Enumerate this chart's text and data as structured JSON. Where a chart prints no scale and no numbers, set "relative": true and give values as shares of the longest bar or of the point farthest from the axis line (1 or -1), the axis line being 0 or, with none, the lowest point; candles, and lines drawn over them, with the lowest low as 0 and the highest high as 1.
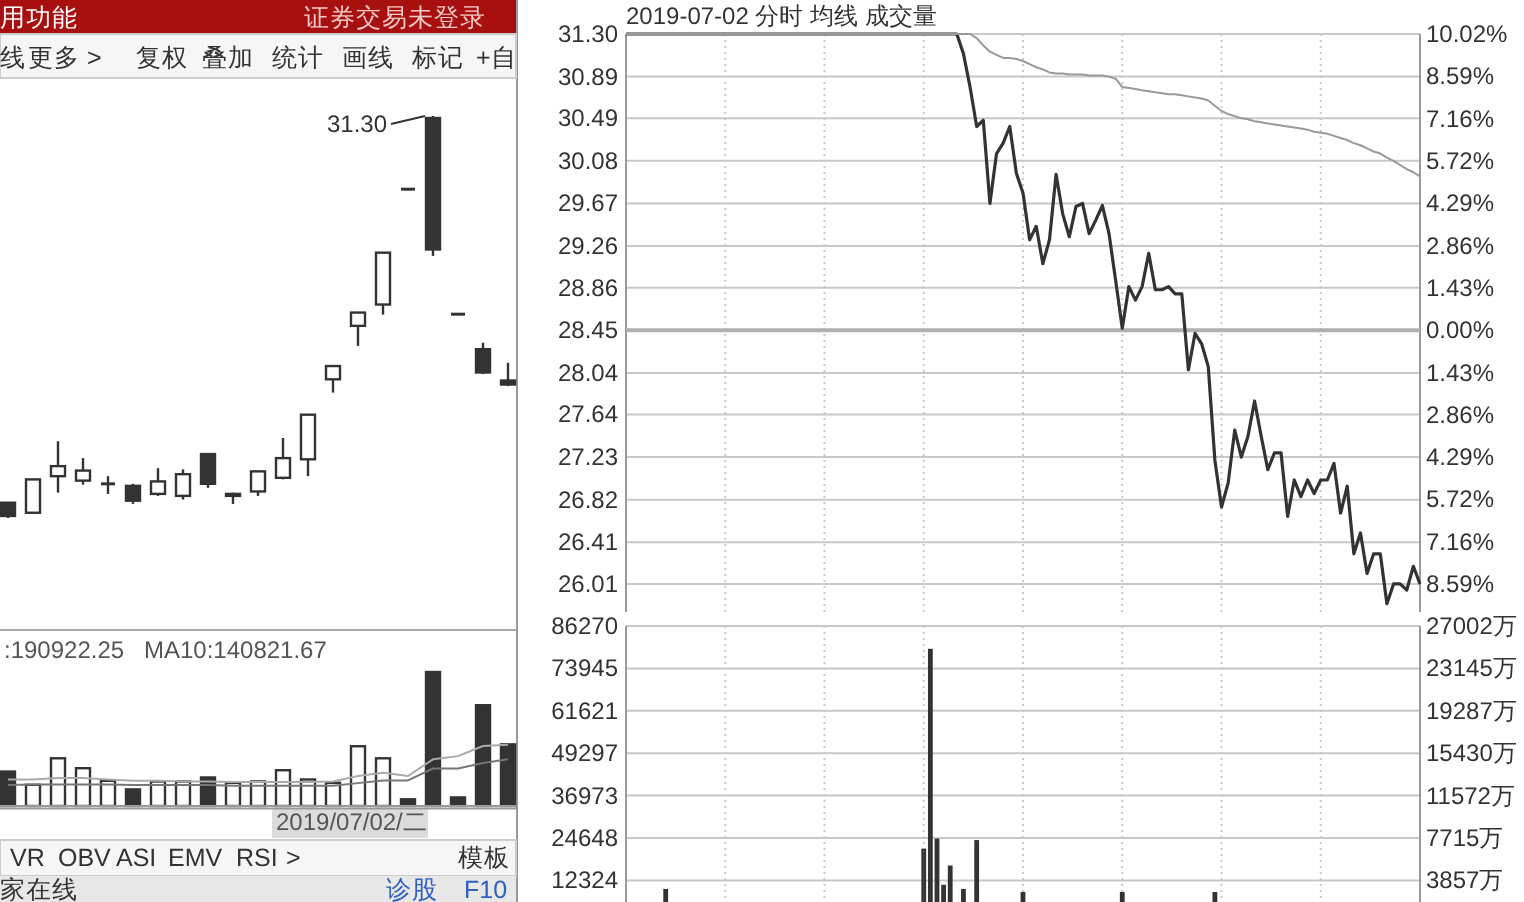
{
  "chart_data": [
    {
      "type": "candlestick",
      "relative": true,
      "color": "#333333",
      "categories": [
        null,
        null,
        null,
        null,
        null,
        null,
        null,
        null,
        null,
        null,
        null,
        null,
        null,
        null,
        null,
        null,
        null,
        null,
        null,
        null,
        null
      ],
      "ohlc": [
        [
          0.038,
          0.038,
          0,
          0.005
        ],
        [
          0.013,
          0.096,
          0.013,
          0.096
        ],
        [
          0.104,
          0.191,
          0.063,
          0.129
        ],
        [
          0.093,
          0.149,
          0.083,
          0.118
        ],
        [
          0.085,
          0.104,
          0.06,
          0.085
        ],
        [
          0.08,
          0.085,
          0.035,
          0.043
        ],
        [
          0.06,
          0.124,
          0.055,
          0.091
        ],
        [
          0.055,
          0.121,
          0.046,
          0.109
        ],
        [
          0.159,
          0.159,
          0.075,
          0.085
        ],
        [
          0.06,
          0.063,
          0.035,
          0.055
        ],
        [
          0.066,
          0.116,
          0.055,
          0.116
        ],
        [
          0.1,
          0.199,
          0.096,
          0.149
        ],
        [
          0.146,
          0.257,
          0.104,
          0.257
        ],
        [
          0.345,
          0.378,
          0.312,
          0.378
        ],
        [
          0.478,
          0.511,
          0.428,
          0.511
        ],
        [
          0.531,
          0.66,
          0.506,
          0.66
        ],
        [
          0.818,
          0.818,
          0.818,
          0.818
        ],
        [
          0.995,
          1,
          0.652,
          0.668
        ],
        [
          0.507,
          0.507,
          0.507,
          0.507
        ],
        [
          0.42,
          0.436,
          0.358,
          0.362
        ],
        [
          0.342,
          0.386,
          0.328,
          0.332
        ]
      ],
      "annotations": [
        "31.30"
      ]
    },
    {
      "type": "bar",
      "relative": true,
      "categories": [
        null,
        null,
        null,
        null,
        null,
        null,
        null,
        null,
        null,
        null,
        null,
        null,
        null,
        null,
        null,
        null,
        null,
        null,
        null,
        null,
        null
      ],
      "values": [
        0.257,
        0.158,
        0.356,
        0.282,
        0.188,
        0.124,
        0.183,
        0.183,
        0.213,
        0.173,
        0.183,
        0.267,
        0.198,
        0.173,
        0.446,
        0.356,
        0.05,
        1,
        0.064,
        0.752,
        0.46
      ],
      "colors": [
        "#333333",
        "#ffffff",
        "#ffffff",
        "#ffffff",
        "#ffffff",
        "#333333",
        "#ffffff",
        "#ffffff",
        "#333333",
        "#ffffff",
        "#ffffff",
        "#ffffff",
        "#ffffff",
        "#ffffff",
        "#ffffff",
        "#ffffff",
        "#333333",
        "#333333",
        "#333333",
        "#333333",
        "#333333"
      ],
      "annotations": [
        ":190922.25",
        "MA10:140821.67",
        "2019/07/02/二"
      ]
    },
    {
      "type": "line",
      "relative": true,
      "categories": [
        null,
        null,
        null,
        null,
        null,
        null,
        null,
        null,
        null,
        null,
        null,
        null,
        null,
        null,
        null,
        null,
        null,
        null,
        null,
        null,
        null
      ],
      "color": "#aaaaaa",
      "values": [
        0.435,
        0.435,
        0.457,
        0.457,
        0.435,
        0.413,
        0.413,
        0.402,
        0.402,
        0.391,
        0.391,
        0.391,
        0.391,
        0.402,
        0.49,
        0.545,
        0.49,
        0.763,
        0.815,
        0.98,
        1
      ]
    },
    {
      "type": "line",
      "relative": true,
      "categories": [
        null,
        null,
        null,
        null,
        null,
        null,
        null,
        null,
        null,
        null,
        null,
        null,
        null,
        null,
        null,
        null,
        null,
        null,
        null,
        null,
        null
      ],
      "color": "#777777",
      "values": [
        0.473,
        0.486,
        0.486,
        0.486,
        0.486,
        0.473,
        0.473,
        0.473,
        0.473,
        0.459,
        0.459,
        0.459,
        0.459,
        0.459,
        0.514,
        0.568,
        0.568,
        0.811,
        0.811,
        0.921,
        1
      ]
    },
    {
      "type": "line",
      "title": "2019-07-02 分时 均线 成交量",
      "grid": true,
      "categories": [
        null,
        null,
        null,
        null,
        null,
        null,
        null,
        null,
        null,
        null,
        null,
        null,
        null,
        null,
        null,
        null,
        null,
        null,
        null,
        null,
        null,
        null,
        null,
        null,
        null,
        null,
        null,
        null,
        null,
        null,
        null,
        null,
        null,
        null,
        null,
        null,
        null,
        null,
        null,
        null,
        null,
        null,
        null,
        null,
        null,
        null,
        null,
        null,
        null,
        null,
        null,
        null,
        null,
        null,
        null,
        null,
        null,
        null,
        null,
        null,
        null,
        null,
        null,
        null,
        null,
        null,
        null,
        null,
        null,
        null,
        null,
        null,
        null,
        null,
        null,
        null,
        null,
        null,
        null,
        null,
        null,
        null,
        null,
        null,
        null,
        null,
        null,
        null,
        null,
        null,
        null,
        null,
        null,
        null,
        null,
        null,
        null,
        null,
        null,
        null,
        null,
        null,
        null,
        null,
        null,
        null,
        null,
        null,
        null,
        null,
        null,
        null,
        null,
        null,
        null,
        null,
        null,
        null,
        null,
        null,
        null
      ],
      "ylim": [
        25.74,
        31.3
      ],
      "yticks": [
        26.01,
        26.41,
        26.82,
        27.23,
        27.64,
        28.04,
        28.45,
        28.86,
        29.26,
        29.67,
        30.08,
        30.49,
        30.89,
        {
          "value": 31.3,
          "label": "31.30"
        }
      ],
      "y2lim": [
        -9.53,
        10.02
      ],
      "y2ticks": [
        {
          "value": -8.59,
          "label": "8.59%"
        },
        {
          "value": -7.16,
          "label": "7.16%"
        },
        {
          "value": -5.72,
          "label": "5.72%"
        },
        {
          "value": -4.29,
          "label": "4.29%"
        },
        {
          "value": -2.86,
          "label": "2.86%"
        },
        {
          "value": -1.43,
          "label": "1.43%"
        },
        {
          "value": 0,
          "label": "0.00%"
        },
        {
          "value": 1.43,
          "label": "1.43%"
        },
        {
          "value": 2.86,
          "label": "2.86%"
        },
        {
          "value": 4.29,
          "label": "4.29%"
        },
        {
          "value": 5.72,
          "label": "5.72%"
        },
        {
          "value": 7.16,
          "label": "7.16%"
        },
        {
          "value": 8.59,
          "label": "8.59%"
        },
        {
          "value": 10.02,
          "label": "10.02%"
        }
      ],
      "ref_lines": [
        {
          "axis": "y",
          "value": 28.45,
          "color": "#b0b0b0"
        }
      ],
      "series": [
        {
          "color": "#333333",
          "values": [
            31.3,
            31.3,
            31.3,
            31.3,
            31.3,
            31.3,
            31.3,
            31.3,
            31.3,
            31.3,
            31.3,
            31.3,
            31.3,
            31.3,
            31.3,
            31.3,
            31.3,
            31.3,
            31.3,
            31.3,
            31.3,
            31.3,
            31.3,
            31.3,
            31.3,
            31.3,
            31.3,
            31.3,
            31.3,
            31.3,
            31.3,
            31.3,
            31.3,
            31.3,
            31.3,
            31.3,
            31.3,
            31.3,
            31.3,
            31.3,
            31.3,
            31.3,
            31.3,
            31.3,
            31.3,
            31.3,
            31.3,
            31.3,
            31.3,
            31.3,
            31.3,
            31.11,
            30.79,
            30.41,
            30.47,
            29.67,
            30.15,
            30.25,
            30.41,
            29.96,
            29.77,
            29.32,
            29.45,
            29.09,
            29.32,
            29.95,
            29.57,
            29.35,
            29.64,
            29.67,
            29.38,
            29.51,
            29.65,
            29.38,
            28.93,
            28.47,
            28.87,
            28.74,
            28.87,
            29.19,
            28.84,
            28.84,
            28.87,
            28.8,
            28.8,
            28.07,
            28.42,
            28.32,
            28.1,
            27.2,
            26.75,
            26.98,
            27.49,
            27.23,
            27.43,
            27.77,
            27.43,
            27.11,
            27.27,
            27.27,
            26.66,
            27.01,
            26.85,
            27.01,
            26.88,
            27.01,
            27.01,
            27.17,
            26.69,
            26.95,
            26.3,
            26.5,
            26.11,
            26.3,
            26.3,
            25.82,
            26.01,
            26.01,
            25.95,
            26.18,
            26.01
          ]
        },
        {
          "color": "#999999",
          "values": [
            31.3,
            31.3,
            31.3,
            31.3,
            31.3,
            31.3,
            31.3,
            31.3,
            31.3,
            31.3,
            31.3,
            31.3,
            31.3,
            31.3,
            31.3,
            31.3,
            31.3,
            31.3,
            31.3,
            31.3,
            31.3,
            31.3,
            31.3,
            31.3,
            31.3,
            31.3,
            31.3,
            31.3,
            31.3,
            31.3,
            31.3,
            31.3,
            31.3,
            31.3,
            31.3,
            31.3,
            31.3,
            31.3,
            31.3,
            31.3,
            31.3,
            31.3,
            31.3,
            31.3,
            31.3,
            31.3,
            31.3,
            31.3,
            31.3,
            31.3,
            31.3,
            31.3,
            31.3,
            31.26,
            31.19,
            31.13,
            31.1,
            31.07,
            31.07,
            31.06,
            31.04,
            31.01,
            30.98,
            30.96,
            30.93,
            30.92,
            30.92,
            30.91,
            30.91,
            30.91,
            30.9,
            30.9,
            30.9,
            30.89,
            30.87,
            30.79,
            30.78,
            30.77,
            30.76,
            30.75,
            30.74,
            30.73,
            30.72,
            30.72,
            30.71,
            30.7,
            30.69,
            30.68,
            30.66,
            30.61,
            30.56,
            30.53,
            30.51,
            30.49,
            30.48,
            30.46,
            30.45,
            30.44,
            30.43,
            30.42,
            30.41,
            30.4,
            30.39,
            30.38,
            30.36,
            30.35,
            30.34,
            30.32,
            30.3,
            30.28,
            30.25,
            30.23,
            30.2,
            30.17,
            30.15,
            30.11,
            30.08,
            30.04,
            30.0,
            29.97,
            29.93
          ]
        }
      ]
    },
    {
      "type": "bar",
      "grid": true,
      "categories": [
        null,
        null,
        null,
        null,
        null,
        null,
        null,
        null,
        null,
        null,
        null,
        null,
        null,
        null,
        null,
        null,
        null,
        null,
        null,
        null,
        null,
        null,
        null,
        null,
        null,
        null,
        null,
        null,
        null,
        null,
        null,
        null,
        null,
        null,
        null,
        null,
        null,
        null,
        null,
        null,
        null,
        null,
        null,
        null,
        null,
        null,
        null,
        null,
        null,
        null,
        null,
        null,
        null,
        null,
        null,
        null,
        null,
        null,
        null,
        null,
        null,
        null,
        null,
        null,
        null,
        null,
        null,
        null,
        null,
        null,
        null,
        null,
        null,
        null,
        null,
        null,
        null,
        null,
        null,
        null,
        null,
        null,
        null,
        null,
        null,
        null,
        null,
        null,
        null,
        null,
        null,
        null,
        null,
        null,
        null,
        null,
        null,
        null,
        null,
        null,
        null,
        null,
        null,
        null,
        null,
        null,
        null,
        null,
        null,
        null,
        null,
        null,
        null,
        null,
        null,
        null,
        null,
        null,
        null,
        null,
        null
      ],
      "ylim": [
        0,
        86270
      ],
      "yticks": [
        12324,
        24648,
        36973,
        49297,
        61621,
        73945,
        86270
      ],
      "y2lim": [
        0,
        27002
      ],
      "y2ticks": [
        {
          "value": 3857,
          "label": "3857万"
        },
        {
          "value": 7715,
          "label": "7715万"
        },
        {
          "value": 11572,
          "label": "11572万"
        },
        {
          "value": 15430,
          "label": "15430万"
        },
        {
          "value": 19287,
          "label": "19287万"
        },
        {
          "value": 23145,
          "label": "23145万"
        },
        {
          "value": 27002,
          "label": "27002万"
        }
      ],
      "values": [
        null,
        null,
        null,
        null,
        null,
        null,
        9500,
        null,
        null,
        null,
        null,
        null,
        null,
        null,
        null,
        null,
        null,
        null,
        null,
        null,
        null,
        null,
        null,
        null,
        null,
        null,
        null,
        null,
        null,
        null,
        null,
        null,
        null,
        null,
        null,
        null,
        null,
        null,
        null,
        null,
        null,
        null,
        null,
        null,
        null,
        21200,
        79300,
        24100,
        10700,
        16300,
        null,
        9500,
        null,
        23700,
        null,
        null,
        null,
        null,
        null,
        null,
        8600,
        null,
        null,
        null,
        null,
        null,
        null,
        null,
        null,
        null,
        null,
        null,
        null,
        null,
        null,
        8600,
        null,
        null,
        null,
        null,
        null,
        null,
        null,
        null,
        null,
        null,
        null,
        null,
        null,
        8600,
        null,
        null,
        null,
        null,
        null,
        null,
        null,
        null,
        null,
        null,
        null,
        null,
        null,
        null,
        null,
        null,
        null,
        null,
        null,
        null,
        null,
        null,
        null,
        null,
        null,
        null,
        null,
        null,
        null,
        null,
        null
      ],
      "color": "#888888"
    },
    {
      "type": "other",
      "annotations": [
        "用功能",
        "证券交易未登录",
        "线",
        "更多 >",
        "复权",
        "叠加",
        "统计",
        "画线",
        "标记",
        "+自",
        "VR",
        "OBV",
        "ASI",
        "EMV",
        "RSI",
        ">",
        "模板",
        "家在线",
        "诊股",
        "F10"
      ]
    }
  ]
}
